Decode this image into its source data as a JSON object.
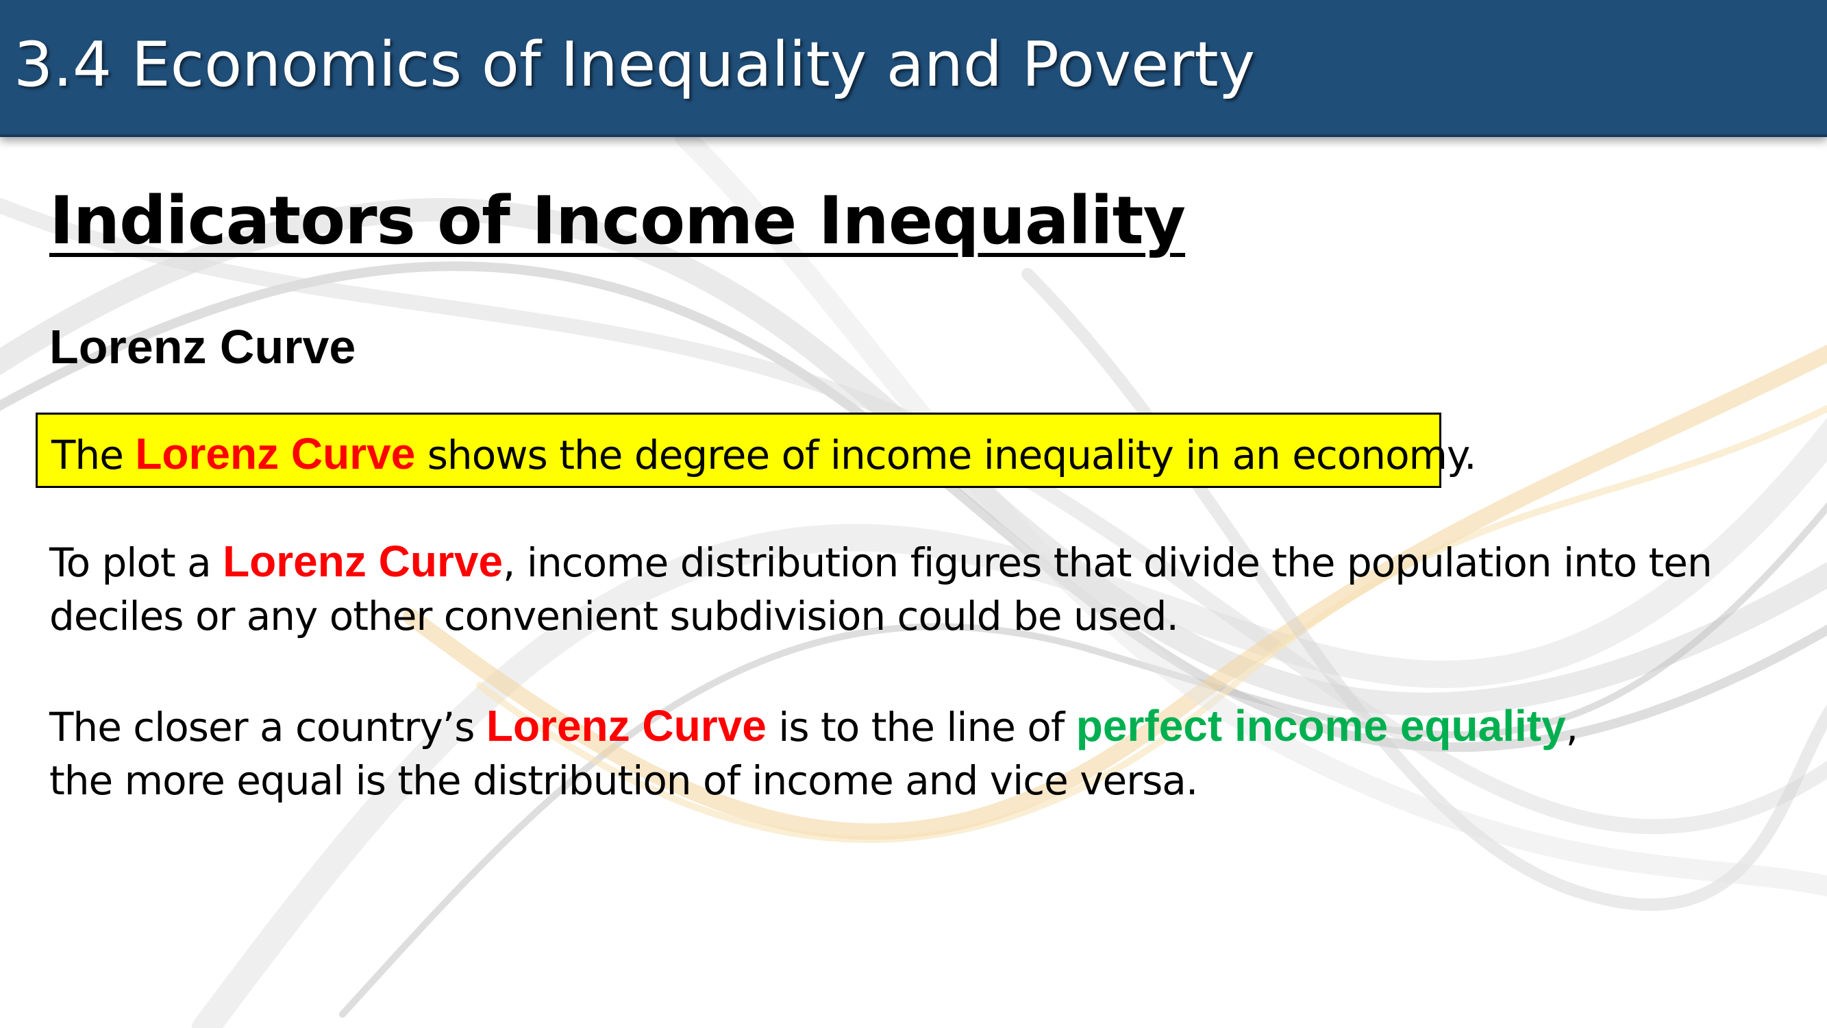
{
  "header": {
    "title": "3.4 Economics of Inequality and Poverty"
  },
  "main": {
    "heading": "Indicators of Income Inequality",
    "subheading": "Lorenz Curve",
    "definition": {
      "prefix": "The ",
      "term": "Lorenz Curve",
      "suffix": " shows the degree of income inequality in an economy."
    },
    "paragraph1": {
      "prefix": "To plot a ",
      "term": "Lorenz Curve",
      "rest_line1": ", income distribution figures that divide the population into ten",
      "line2": "deciles or any other convenient subdivision could be used."
    },
    "paragraph2": {
      "prefix": "The closer a country’s ",
      "term": "Lorenz Curve",
      "middle": " is to the line of ",
      "green_term": "perfect income equality",
      "comma": ",",
      "line2": "the more equal is the distribution of income and vice versa."
    }
  },
  "colors": {
    "title_bar": "#1f4e79",
    "highlight_box": "#ffff00",
    "red_term": "#ff0000",
    "green_term": "#00b050"
  }
}
